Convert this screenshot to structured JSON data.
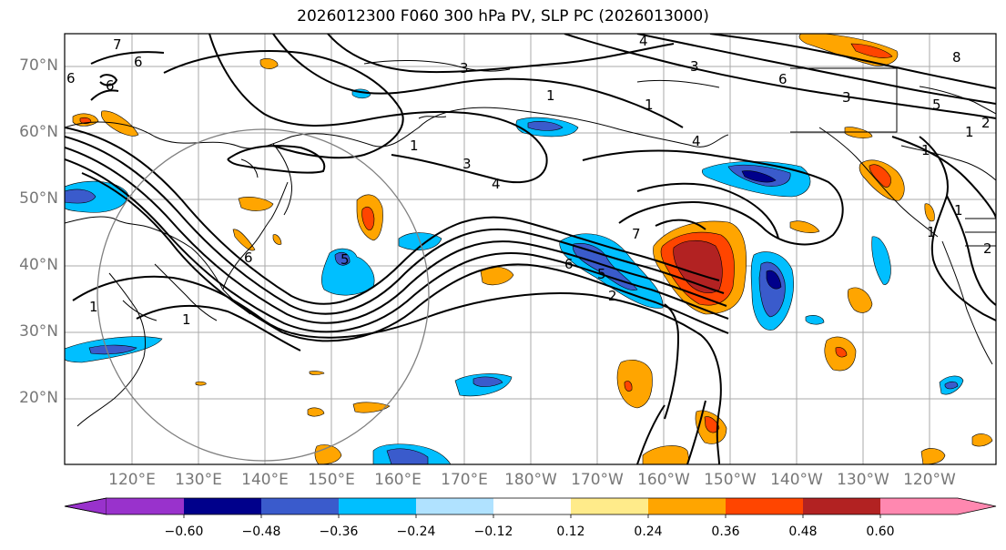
{
  "title": "2026012300 F060 300 hPa PV, SLP PC (2026013000)",
  "lat_labels": [
    "70°N",
    "60°N",
    "50°N",
    "40°N",
    "30°N",
    "20°N"
  ],
  "lon_labels": [
    "120°E",
    "130°E",
    "140°E",
    "150°E",
    "160°E",
    "170°E",
    "180°W",
    "170°W",
    "160°W",
    "150°W",
    "140°W",
    "130°W",
    "120°W"
  ],
  "colorbar": {
    "ticks": [
      "−0.60",
      "−0.48",
      "−0.36",
      "−0.24",
      "−0.12",
      "0.12",
      "0.24",
      "0.36",
      "0.48",
      "0.60"
    ],
    "colors": [
      "#9932CC",
      "#00008B",
      "#3A5BCC",
      "#00BFFF",
      "#B0E2FF",
      "#FFFFFF",
      "#FFEB8A",
      "#FFA500",
      "#FF4500",
      "#B22222",
      "#FF88B0"
    ]
  },
  "contour_labels": [
    "7",
    "6",
    "6",
    "6",
    "3",
    "1",
    "4",
    "3",
    "6",
    "8",
    "5",
    "1",
    "2",
    "1",
    "1",
    "3",
    "4",
    "5",
    "6",
    "7",
    "6",
    "5",
    "2",
    "2",
    "1",
    "1",
    "1",
    "1",
    "1",
    "3",
    "4"
  ]
}
